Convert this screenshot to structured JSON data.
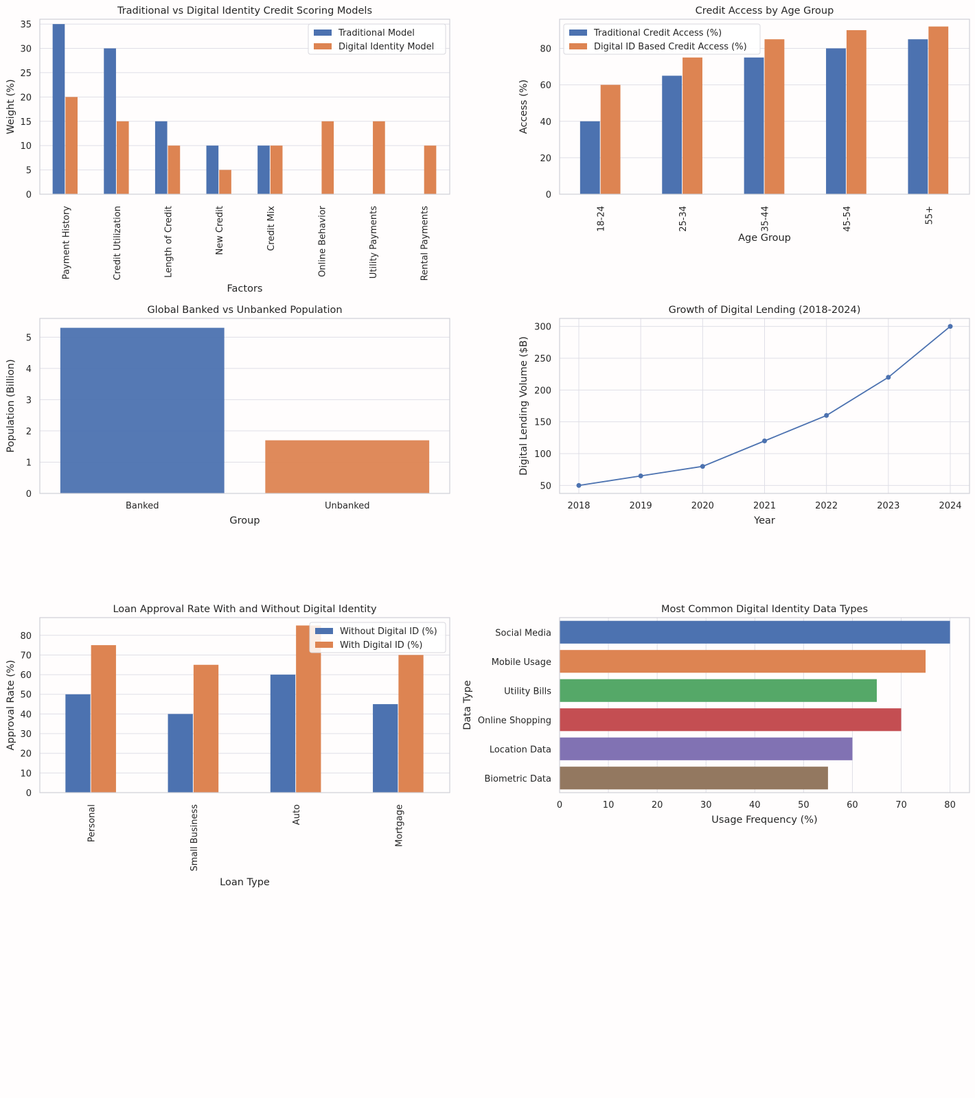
{
  "colors": {
    "blue": "#4c72b0",
    "orange": "#dd8452",
    "green": "#55a868",
    "red": "#c44e52",
    "purple": "#8172b3",
    "brown": "#937860",
    "grid": "#dfdfe7",
    "axes": "#cfcfd6"
  },
  "chart_data": [
    {
      "type": "bar",
      "title": "Traditional vs Digital Identity Credit Scoring Models",
      "xlabel": "Factors",
      "ylabel": "Weight (%)",
      "categories": [
        "Payment History",
        "Credit Utilization",
        "Length of Credit",
        "New Credit",
        "Credit Mix",
        "Online Behavior",
        "Utility Payments",
        "Rental Payments"
      ],
      "series": [
        {
          "name": "Traditional Model",
          "values": [
            35,
            30,
            15,
            10,
            10,
            0,
            0,
            0
          ]
        },
        {
          "name": "Digital Identity Model",
          "values": [
            20,
            15,
            10,
            5,
            10,
            15,
            15,
            10
          ]
        }
      ],
      "yticks": [
        "0",
        "5",
        "10",
        "15",
        "20",
        "25",
        "30",
        "35"
      ],
      "ylim": [
        0,
        36
      ],
      "grid": true,
      "legend": "top-right"
    },
    {
      "type": "bar",
      "title": "Credit Access by Age Group",
      "xlabel": "Age Group",
      "ylabel": "Access (%)",
      "categories": [
        "18-24",
        "25-34",
        "35-44",
        "45-54",
        "55+"
      ],
      "series": [
        {
          "name": "Traditional Credit Access (%)",
          "values": [
            40,
            65,
            75,
            80,
            85
          ]
        },
        {
          "name": "Digital ID Based Credit Access (%)",
          "values": [
            60,
            75,
            85,
            90,
            92
          ]
        }
      ],
      "yticks": [
        "0",
        "20",
        "40",
        "60",
        "80"
      ],
      "ylim": [
        0,
        96
      ],
      "grid": true,
      "legend": "top-left"
    },
    {
      "type": "bar",
      "title": "Global Banked vs Unbanked Population",
      "xlabel": "Group",
      "ylabel": "Population (Billion)",
      "categories": [
        "Banked",
        "Unbanked"
      ],
      "values": [
        5.3,
        1.7
      ],
      "yticks": [
        "0",
        "1",
        "2",
        "3",
        "4",
        "5"
      ],
      "ylim": [
        0,
        5.6
      ],
      "grid": true
    },
    {
      "type": "line",
      "title": "Growth of Digital Lending (2018-2024)",
      "xlabel": "Year",
      "ylabel": "Digital Lending Volume ($B)",
      "x": [
        "2018",
        "2019",
        "2020",
        "2021",
        "2022",
        "2023",
        "2024"
      ],
      "values": [
        50,
        65,
        80,
        120,
        160,
        220,
        300
      ],
      "yticks": [
        "50",
        "100",
        "150",
        "200",
        "250",
        "300"
      ],
      "ylim": [
        37.5,
        312.5
      ],
      "grid": true
    },
    {
      "type": "bar",
      "title": "Loan Approval Rate With and Without Digital Identity",
      "xlabel": "Loan Type",
      "ylabel": "Approval Rate (%)",
      "categories": [
        "Personal",
        "Small Business",
        "Auto",
        "Mortgage"
      ],
      "series": [
        {
          "name": "Without Digital ID (%)",
          "values": [
            50,
            40,
            60,
            45
          ]
        },
        {
          "name": "With Digital ID (%)",
          "values": [
            75,
            65,
            85,
            70
          ]
        }
      ],
      "yticks": [
        "0",
        "10",
        "20",
        "30",
        "40",
        "50",
        "60",
        "70",
        "80"
      ],
      "ylim": [
        0,
        89
      ],
      "grid": true,
      "legend": "top-right"
    },
    {
      "type": "bar",
      "orientation": "horizontal",
      "title": "Most Common Digital Identity Data Types",
      "xlabel": "Usage Frequency (%)",
      "ylabel": "Data Type",
      "categories": [
        "Social Media",
        "Mobile Usage",
        "Utility Bills",
        "Online Shopping",
        "Location Data",
        "Biometric Data"
      ],
      "values": [
        80,
        75,
        65,
        70,
        60,
        55
      ],
      "xticks": [
        "0",
        "10",
        "20",
        "30",
        "40",
        "50",
        "60",
        "70",
        "80"
      ],
      "xlim": [
        0,
        84
      ],
      "grid": true
    }
  ]
}
